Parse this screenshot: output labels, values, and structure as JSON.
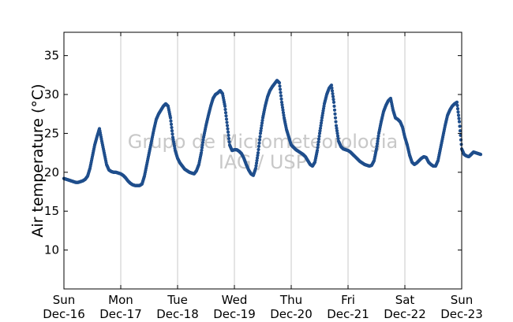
{
  "chart_data": {
    "type": "scatter",
    "title": "",
    "xlabel": "",
    "ylabel": "Air temperature (°C)",
    "ylim": [
      5,
      38
    ],
    "yticks": [
      10,
      15,
      20,
      25,
      30,
      35
    ],
    "xlim": [
      "Sun Dec-16",
      "Sun Dec-23"
    ],
    "xticks": [
      {
        "day": "Sun",
        "date": "Dec-16"
      },
      {
        "day": "Mon",
        "date": "Dec-17"
      },
      {
        "day": "Tue",
        "date": "Dec-18"
      },
      {
        "day": "Wed",
        "date": "Dec-19"
      },
      {
        "day": "Thu",
        "date": "Dec-20"
      },
      {
        "day": "Fri",
        "date": "Dec-21"
      },
      {
        "day": "Sat",
        "date": "Dec-22"
      },
      {
        "day": "Sun",
        "date": "Dec-23"
      }
    ],
    "grid": "vertical",
    "marker_color": "#1f4e8c",
    "series_hourly": {
      "Dec-16": [
        19.2,
        19.1,
        19.0,
        18.9,
        18.8,
        18.7,
        18.7,
        18.8,
        18.9,
        19.1,
        19.5,
        20.5,
        22.0,
        23.5,
        24.6,
        25.6,
        24.0,
        22.5,
        21.0,
        20.3,
        20.1,
        20.0,
        20.0,
        19.9
      ],
      "Dec-17": [
        19.8,
        19.6,
        19.3,
        18.9,
        18.6,
        18.4,
        18.3,
        18.3,
        18.3,
        18.5,
        19.5,
        21.0,
        22.5,
        24.0,
        25.5,
        26.8,
        27.5,
        28.0,
        28.5,
        28.8,
        28.5,
        27.0,
        24.5,
        22.8
      ],
      "Dec-18": [
        21.8,
        21.2,
        20.8,
        20.4,
        20.2,
        20.0,
        19.9,
        19.8,
        20.2,
        21.0,
        22.5,
        24.5,
        26.0,
        27.3,
        28.5,
        29.5,
        30.0,
        30.2,
        30.5,
        30.1,
        28.5,
        26.0,
        23.5,
        22.8
      ],
      "Dec-19": [
        22.9,
        22.9,
        22.7,
        22.4,
        21.8,
        21.0,
        20.3,
        19.8,
        19.6,
        20.5,
        22.5,
        25.0,
        27.0,
        28.5,
        29.7,
        30.5,
        31.0,
        31.4,
        31.8,
        31.5,
        29.0,
        27.0,
        25.5,
        24.5
      ],
      "Dec-20": [
        23.5,
        23.2,
        22.9,
        22.7,
        22.5,
        22.3,
        22.0,
        21.5,
        21.0,
        20.8,
        21.3,
        22.8,
        25.0,
        27.0,
        28.8,
        30.0,
        30.8,
        31.2,
        29.0,
        26.0,
        24.0,
        23.3,
        23.0,
        22.9
      ],
      "Dec-21": [
        22.8,
        22.6,
        22.3,
        22.0,
        21.7,
        21.4,
        21.2,
        21.0,
        20.9,
        20.8,
        20.9,
        21.5,
        23.0,
        25.0,
        26.5,
        27.8,
        28.6,
        29.2,
        29.5,
        28.0,
        27.0,
        26.8,
        26.5,
        25.8
      ],
      "Dec-22": [
        24.5,
        23.5,
        22.2,
        21.3,
        21.0,
        21.2,
        21.5,
        21.8,
        22.0,
        21.9,
        21.3,
        21.0,
        20.8,
        20.8,
        21.5,
        23.0,
        24.5,
        26.0,
        27.3,
        28.0,
        28.5,
        28.8,
        29.0,
        26.5
      ],
      "Dec-23": [
        23.0,
        22.3,
        22.1,
        22.0,
        22.3,
        22.6,
        22.5,
        22.4,
        22.3
      ]
    },
    "watermark": [
      "Grupo de Micrometeorologia",
      "IAG / USP"
    ]
  }
}
